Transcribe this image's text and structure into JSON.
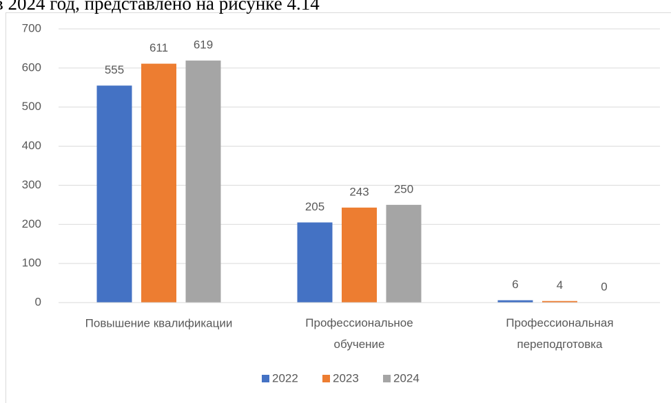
{
  "caption": "в 2024 год, представлено на рисунке 4.14",
  "chart_data": {
    "type": "bar",
    "categories": [
      "Повышение квалификации",
      "Профессиональное обучение",
      "Профессиональная переподготовка"
    ],
    "series": [
      {
        "name": "2022",
        "color": "#4472c4",
        "values": [
          555,
          205,
          6
        ]
      },
      {
        "name": "2023",
        "color": "#ed7d31",
        "values": [
          611,
          243,
          4
        ]
      },
      {
        "name": "2024",
        "color": "#a5a5a5",
        "values": [
          619,
          250,
          0
        ]
      }
    ],
    "ylim": [
      0,
      700
    ],
    "yticks": [
      0,
      100,
      200,
      300,
      400,
      500,
      600,
      700
    ],
    "grid": true,
    "legend": "bottom"
  }
}
